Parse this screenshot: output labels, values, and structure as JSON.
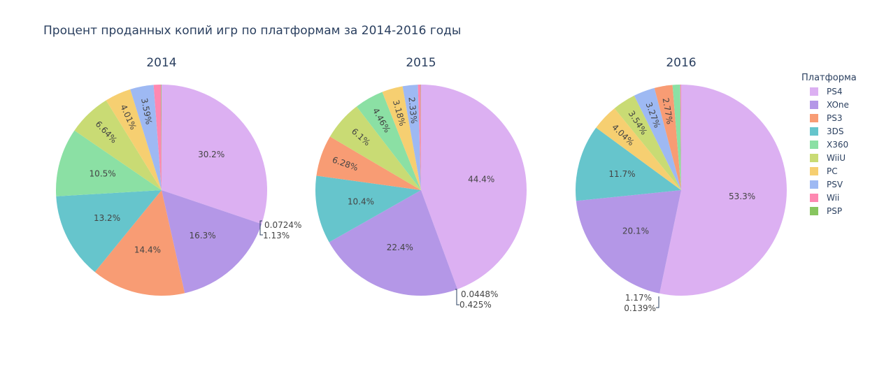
{
  "title": "Процент проданных копий игр по платформам за 2014-2016 годы",
  "legend": {
    "title": "Платформа",
    "items": [
      {
        "label": "PS4",
        "color": "#dcb0f2"
      },
      {
        "label": "XOne",
        "color": "#b497e7"
      },
      {
        "label": "PS3",
        "color": "#f89c74"
      },
      {
        "label": "3DS",
        "color": "#66c5cc"
      },
      {
        "label": "X360",
        "color": "#8be0a4"
      },
      {
        "label": "WiiU",
        "color": "#c9db74"
      },
      {
        "label": "PC",
        "color": "#f6cf71"
      },
      {
        "label": "PSV",
        "color": "#9eb9f3"
      },
      {
        "label": "Wii",
        "color": "#fe88b1"
      },
      {
        "label": "PSP",
        "color": "#87c55f"
      }
    ]
  },
  "chart_data": [
    {
      "type": "pie",
      "title": "2014",
      "slices": [
        {
          "label": "PS4",
          "value": 30.2,
          "text": "30.2%"
        },
        {
          "label": "XOne",
          "value": 16.3,
          "text": "16.3%"
        },
        {
          "label": "PS3",
          "value": 14.4,
          "text": "14.4%"
        },
        {
          "label": "3DS",
          "value": 13.2,
          "text": "13.2%"
        },
        {
          "label": "X360",
          "value": 10.5,
          "text": "10.5%"
        },
        {
          "label": "WiiU",
          "value": 6.64,
          "text": "6.64%"
        },
        {
          "label": "PC",
          "value": 4.01,
          "text": "4.01%"
        },
        {
          "label": "PSV",
          "value": 3.59,
          "text": "3.59%"
        },
        {
          "label": "Wii",
          "value": 1.13,
          "text": "1.13%"
        },
        {
          "label": "PSP",
          "value": 0.0724,
          "text": "0.0724%"
        }
      ]
    },
    {
      "type": "pie",
      "title": "2015",
      "slices": [
        {
          "label": "PS4",
          "value": 44.4,
          "text": "44.4%"
        },
        {
          "label": "XOne",
          "value": 22.4,
          "text": "22.4%"
        },
        {
          "label": "3DS",
          "value": 10.4,
          "text": "10.4%"
        },
        {
          "label": "PS3",
          "value": 6.28,
          "text": "6.28%"
        },
        {
          "label": "WiiU",
          "value": 6.1,
          "text": "6.1%"
        },
        {
          "label": "X360",
          "value": 4.46,
          "text": "4.46%"
        },
        {
          "label": "PC",
          "value": 3.18,
          "text": "3.18%"
        },
        {
          "label": "PSV",
          "value": 2.33,
          "text": "2.33%"
        },
        {
          "label": "Wii",
          "value": 0.425,
          "text": "0.425%"
        },
        {
          "label": "PSP",
          "value": 0.0448,
          "text": "0.0448%"
        }
      ]
    },
    {
      "type": "pie",
      "title": "2016",
      "slices": [
        {
          "label": "PS4",
          "value": 53.3,
          "text": "53.3%"
        },
        {
          "label": "XOne",
          "value": 20.1,
          "text": "20.1%"
        },
        {
          "label": "3DS",
          "value": 11.7,
          "text": "11.7%"
        },
        {
          "label": "PC",
          "value": 4.04,
          "text": "4.04%"
        },
        {
          "label": "WiiU",
          "value": 3.54,
          "text": "3.54%"
        },
        {
          "label": "PSV",
          "value": 3.27,
          "text": "3.27%"
        },
        {
          "label": "PS3",
          "value": 2.77,
          "text": "2.77%"
        },
        {
          "label": "X360",
          "value": 1.17,
          "text": "1.17%"
        },
        {
          "label": "Wii",
          "value": 0.139,
          "text": "0.139%"
        }
      ]
    }
  ]
}
